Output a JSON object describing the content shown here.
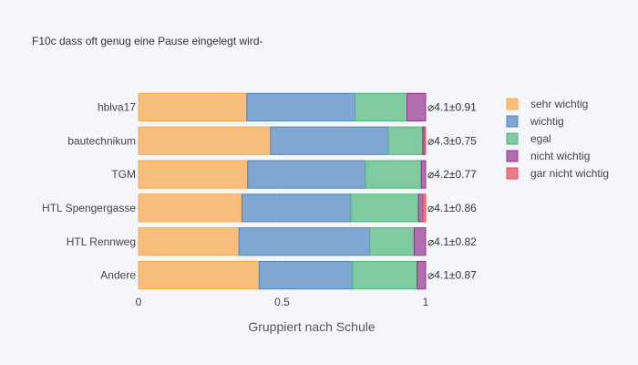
{
  "chart_data": {
    "type": "bar",
    "orientation": "horizontal",
    "stacked": true,
    "title": "F10c dass oft genug eine Pause eingelegt wird-",
    "xlabel": "Gruppiert nach Schule",
    "ylabel": "",
    "xlim": [
      0,
      1.2
    ],
    "xticks": [
      0,
      0.5,
      1
    ],
    "xtick_labels": [
      "0",
      "0.5",
      "1"
    ],
    "grid": true,
    "legend_position": "right",
    "categories": [
      "hblva17",
      "bautechnikum",
      "TGM",
      "HTL Spengergasse",
      "HTL Rennweg",
      "Andere"
    ],
    "series": [
      {
        "name": "sehr wichtig",
        "color": "#f9a846",
        "values": [
          0.377,
          0.46,
          0.38,
          0.36,
          0.35,
          0.42
        ]
      },
      {
        "name": "wichtig",
        "color": "#4f86c0",
        "values": [
          0.377,
          0.41,
          0.41,
          0.38,
          0.455,
          0.325
        ]
      },
      {
        "name": "egal",
        "color": "#4db87a",
        "values": [
          0.181,
          0.12,
          0.195,
          0.235,
          0.155,
          0.225
        ]
      },
      {
        "name": "nicht wichtig",
        "color": "#94348f",
        "values": [
          0.065,
          0.005,
          0.015,
          0.015,
          0.04,
          0.03
        ]
      },
      {
        "name": "gar nicht wichtig",
        "color": "#e34a56",
        "values": [
          0.0,
          0.005,
          0.0,
          0.01,
          0.0,
          0.0
        ]
      }
    ],
    "annotations": [
      "⌀4.1±0.91",
      "⌀4.3±0.75",
      "⌀4.2±0.77",
      "⌀4.1±0.86",
      "⌀4.1±0.82",
      "⌀4.1±0.87"
    ]
  }
}
